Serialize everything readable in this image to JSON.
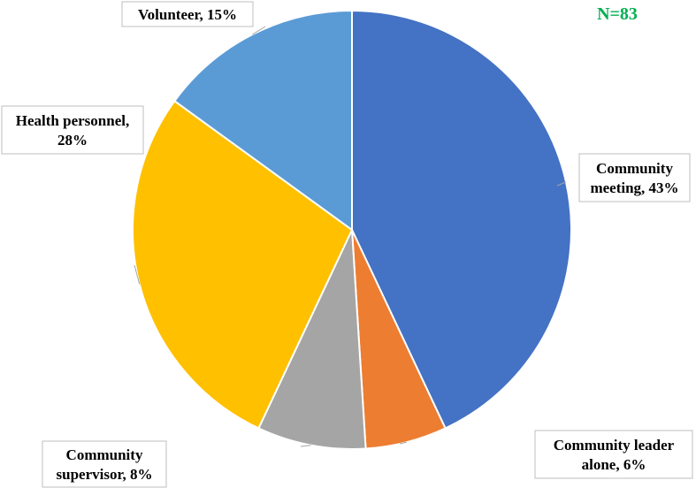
{
  "chart_data": {
    "type": "pie",
    "annotation": "N=83",
    "slices": [
      {
        "label_lines": [
          "Community",
          "meeting, 43%"
        ],
        "value": 43,
        "color": "#4472c4"
      },
      {
        "label_lines": [
          "Community leader",
          "alone, 6%"
        ],
        "value": 6,
        "color": "#ed7d31"
      },
      {
        "label_lines": [
          "Community",
          "supervisor, 8%"
        ],
        "value": 8,
        "color": "#a5a5a5"
      },
      {
        "label_lines": [
          "Health personnel,",
          "28%"
        ],
        "value": 28,
        "color": "#ffc000"
      },
      {
        "label_lines": [
          "Volunteer, 15%"
        ],
        "value": 15,
        "color": "#5b9bd5"
      }
    ],
    "start": "12 o'clock",
    "direction": "clockwise",
    "legend": "none"
  }
}
